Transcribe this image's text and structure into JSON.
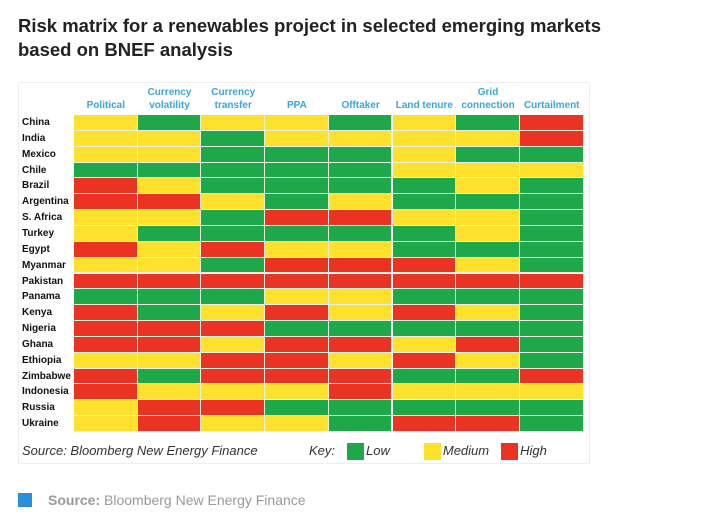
{
  "title": "Risk matrix for a renewables project in selected emerging markets based on BNEF analysis",
  "chart_data": {
    "type": "heatmap",
    "columns": [
      [
        "",
        "Political"
      ],
      [
        "Currency",
        "volatility"
      ],
      [
        "Currency",
        "transfer"
      ],
      [
        "",
        "PPA"
      ],
      [
        "",
        "Offtaker"
      ],
      [
        "",
        "Land tenure"
      ],
      [
        "Grid",
        "connection"
      ],
      [
        "",
        "Curtailment"
      ]
    ],
    "rows": [
      "China",
      "India",
      "Mexico",
      "Chile",
      "Brazil",
      "Argentina",
      "S. Africa",
      "Turkey",
      "Egypt",
      "Myanmar",
      "Pakistan",
      "Panama",
      "Kenya",
      "Nigeria",
      "Ghana",
      "Ethiopia",
      "Zimbabwe",
      "Indonesia",
      "Russia",
      "Ukraine"
    ],
    "values": [
      [
        "M",
        "L",
        "M",
        "M",
        "L",
        "M",
        "L",
        "H"
      ],
      [
        "M",
        "M",
        "L",
        "M",
        "M",
        "M",
        "M",
        "H"
      ],
      [
        "M",
        "M",
        "L",
        "L",
        "L",
        "M",
        "L",
        "L"
      ],
      [
        "L",
        "L",
        "L",
        "L",
        "L",
        "M",
        "M",
        "M"
      ],
      [
        "H",
        "M",
        "L",
        "L",
        "L",
        "L",
        "M",
        "L"
      ],
      [
        "H",
        "H",
        "M",
        "L",
        "M",
        "L",
        "L",
        "L"
      ],
      [
        "M",
        "M",
        "L",
        "H",
        "H",
        "M",
        "M",
        "L"
      ],
      [
        "M",
        "L",
        "L",
        "L",
        "L",
        "L",
        "M",
        "L"
      ],
      [
        "H",
        "M",
        "H",
        "M",
        "M",
        "L",
        "L",
        "L"
      ],
      [
        "M",
        "M",
        "L",
        "H",
        "H",
        "H",
        "M",
        "L"
      ],
      [
        "H",
        "H",
        "H",
        "H",
        "H",
        "H",
        "H",
        "H"
      ],
      [
        "L",
        "L",
        "L",
        "M",
        "M",
        "L",
        "L",
        "L"
      ],
      [
        "H",
        "L",
        "M",
        "H",
        "M",
        "H",
        "M",
        "L"
      ],
      [
        "H",
        "H",
        "H",
        "L",
        "L",
        "L",
        "L",
        "L"
      ],
      [
        "H",
        "H",
        "M",
        "H",
        "H",
        "M",
        "H",
        "L"
      ],
      [
        "M",
        "M",
        "H",
        "H",
        "M",
        "H",
        "M",
        "L"
      ],
      [
        "H",
        "L",
        "H",
        "H",
        "H",
        "L",
        "L",
        "H"
      ],
      [
        "H",
        "M",
        "M",
        "M",
        "H",
        "M",
        "M",
        "M"
      ],
      [
        "M",
        "H",
        "H",
        "L",
        "L",
        "L",
        "L",
        "L"
      ],
      [
        "M",
        "H",
        "M",
        "M",
        "L",
        "H",
        "H",
        "L"
      ]
    ],
    "legend": {
      "title": "Key:",
      "items": [
        {
          "code": "L",
          "label": "Low",
          "color": "#1fa84a"
        },
        {
          "code": "M",
          "label": "Medium",
          "color": "#fde12d"
        },
        {
          "code": "H",
          "label": "High",
          "color": "#ea3323"
        }
      ]
    }
  },
  "panel_source": "Source: Bloomberg New Energy Finance",
  "footer": {
    "label": "Source:",
    "text": "Bloomberg New Energy Finance"
  }
}
